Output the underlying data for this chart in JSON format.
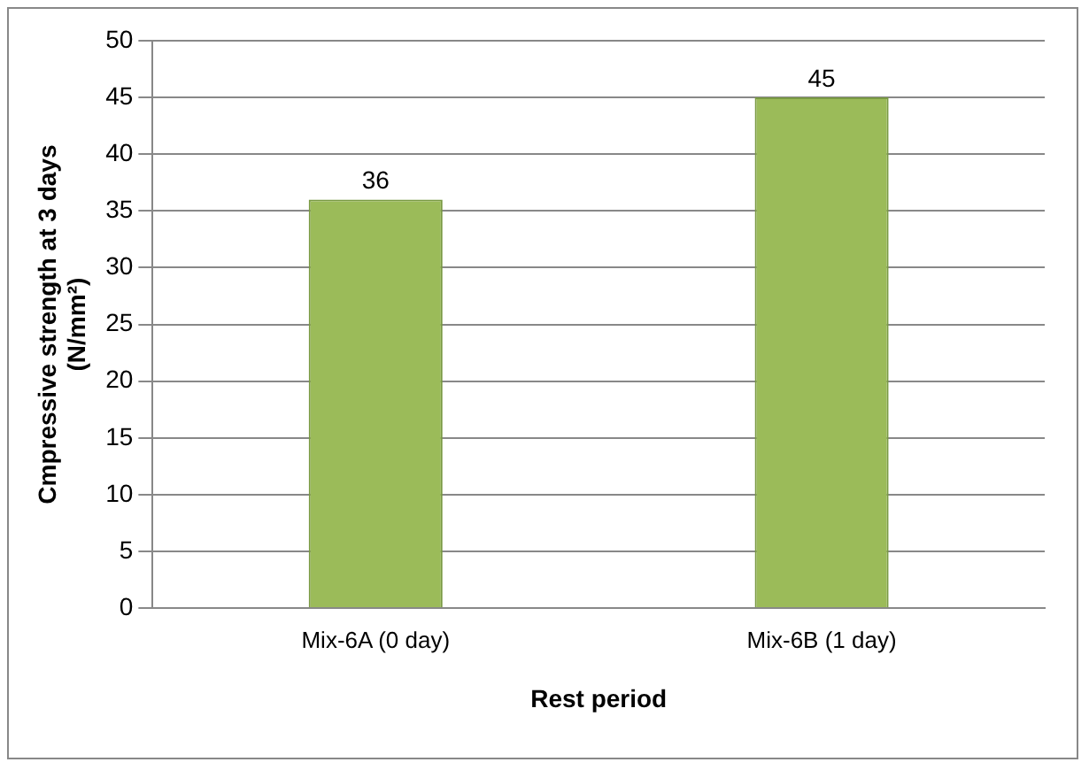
{
  "chart_data": {
    "type": "bar",
    "xlabel": "Rest period",
    "ylabel": "Cmpressive strength at 3 days\n(N/mm²)",
    "categories": [
      "Mix-6A (0 day)",
      "Mix-6B (1 day)"
    ],
    "values": [
      36,
      45
    ],
    "color": "#9bbb59",
    "ylim": [
      0,
      50
    ],
    "yticks": [
      0,
      5,
      10,
      15,
      20,
      25,
      30,
      35,
      40,
      45,
      50
    ],
    "grid": "y",
    "legend": false,
    "data_labels": true
  }
}
